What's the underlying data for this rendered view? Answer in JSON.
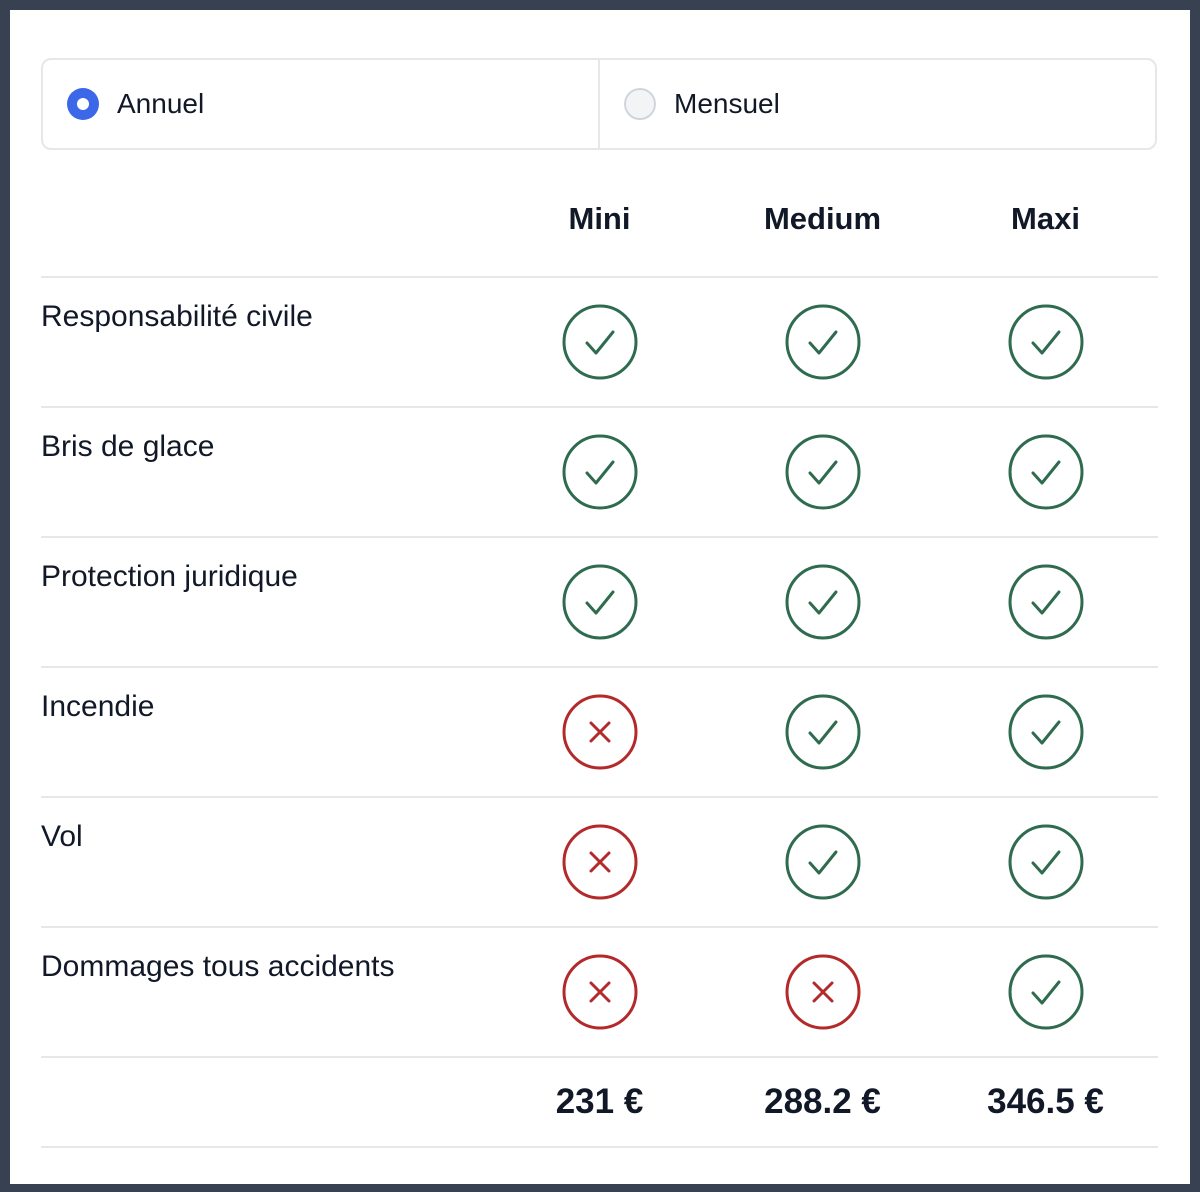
{
  "billing": {
    "options": [
      {
        "label": "Annuel",
        "selected": true
      },
      {
        "label": "Mensuel",
        "selected": false
      }
    ]
  },
  "table": {
    "plans": [
      "Mini",
      "Medium",
      "Maxi"
    ],
    "features": [
      {
        "label": "Responsabilité civile",
        "included": [
          true,
          true,
          true
        ]
      },
      {
        "label": "Bris de glace",
        "included": [
          true,
          true,
          true
        ]
      },
      {
        "label": "Protection juridique",
        "included": [
          true,
          true,
          true
        ]
      },
      {
        "label": "Incendie",
        "included": [
          false,
          true,
          true
        ]
      },
      {
        "label": "Vol",
        "included": [
          false,
          true,
          true
        ]
      },
      {
        "label": "Dommages tous accidents",
        "included": [
          false,
          false,
          true
        ]
      }
    ],
    "prices": [
      "231 €",
      "288.2 €",
      "346.5 €"
    ]
  },
  "colors": {
    "included": "#2f6b4f",
    "excluded": "#b42a2a",
    "radio_selected": "#3b67e8"
  },
  "icons": {
    "included": "check-circle-icon",
    "excluded": "x-circle-icon"
  }
}
